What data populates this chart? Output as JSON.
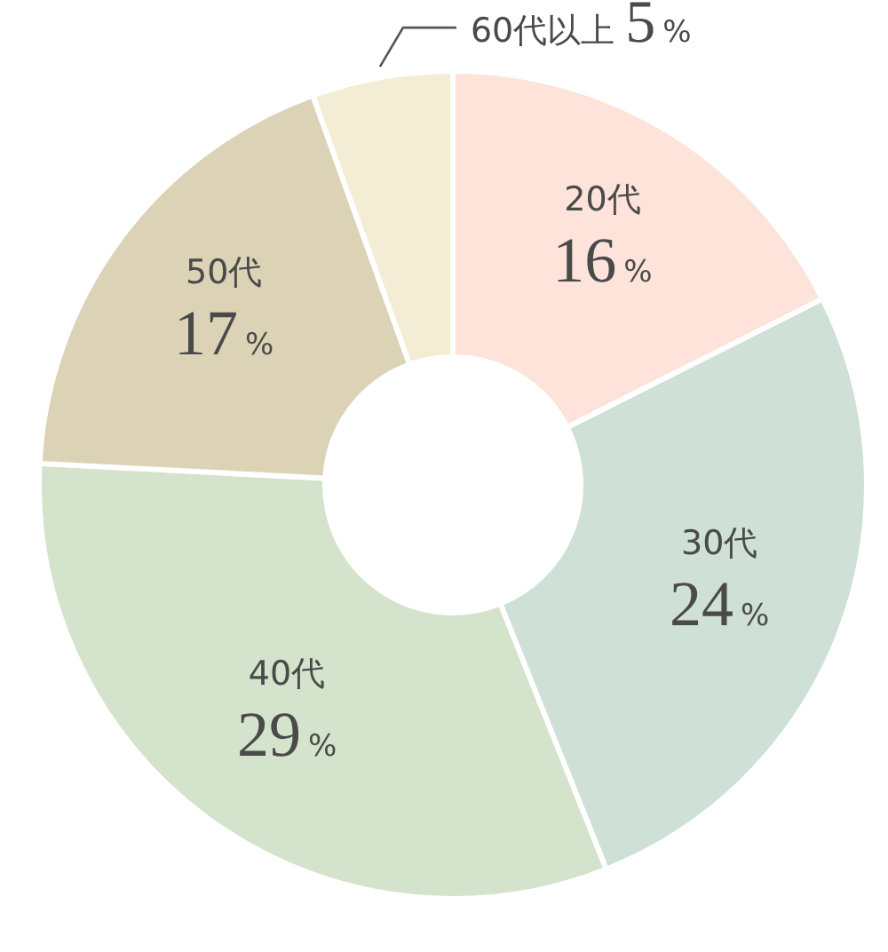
{
  "chart_data": {
    "type": "donut",
    "categories": [
      "20代",
      "30代",
      "40代",
      "50代",
      "60代以上"
    ],
    "values": [
      16,
      24,
      29,
      17,
      5
    ],
    "value_labels": [
      "16%",
      "24%",
      "29%",
      "17%",
      "5%"
    ],
    "colors": [
      "#fde3d9",
      "#cfe0d6",
      "#d4e3cb",
      "#dcd3b7",
      "#f3edd5"
    ]
  }
}
